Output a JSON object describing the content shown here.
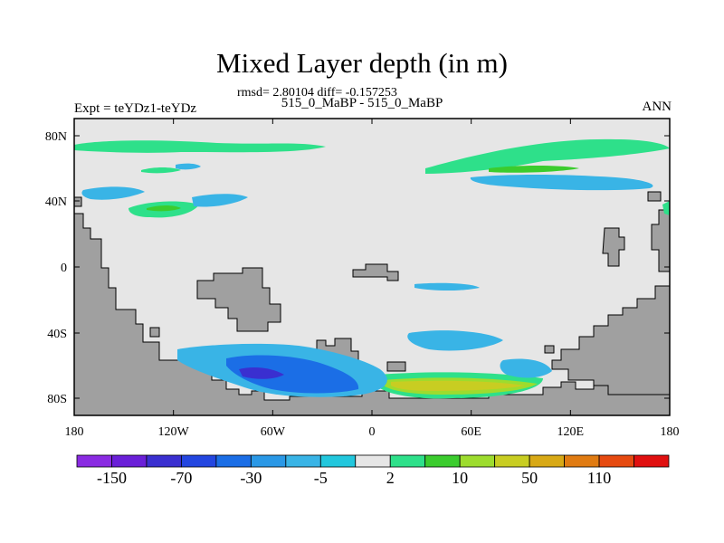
{
  "title": "Mixed Layer depth (in m)",
  "stats": "rmsd= 2.80104 diff= -0.157253",
  "subtitle": "515_0_MaBP - 515_0_MaBP",
  "left_label": "Expt = teYDz1-teYDz",
  "right_label": "ANN",
  "lat_ticks": [
    "80N",
    "40N",
    "0",
    "40S",
    "80S"
  ],
  "lon_ticks": [
    "180",
    "120W",
    "60W",
    "0",
    "60E",
    "120E",
    "180"
  ],
  "colorbar": {
    "colors": [
      "#8a2be2",
      "#6a1fd8",
      "#3a2fd0",
      "#2346e0",
      "#1b6ee6",
      "#2a98e6",
      "#39b4e6",
      "#22c7dd",
      "#e6e6e6",
      "#2ee08a",
      "#3bcc2e",
      "#9ddc2e",
      "#c8cd22",
      "#d8a916",
      "#e07b12",
      "#e64a10",
      "#e01010"
    ],
    "labels": [
      "-150",
      "-70",
      "-30",
      "-5",
      "2",
      "10",
      "50",
      "110"
    ]
  },
  "colors": {
    "ocean": "#e6e6e6",
    "land": "#a0a0a0"
  }
}
